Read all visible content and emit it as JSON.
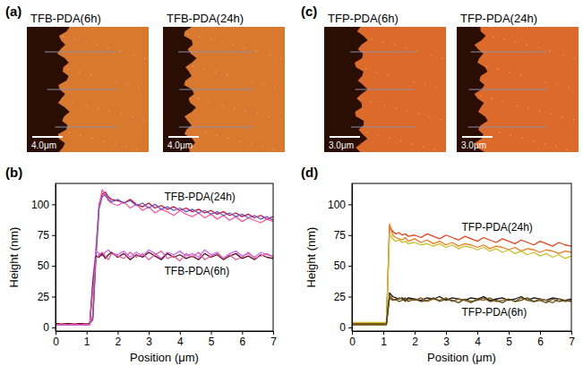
{
  "figure": {
    "panels": [
      {
        "label": "(a)",
        "images": [
          {
            "title": "TFB-PDA(6h)",
            "scale_bar": "4.0μm"
          },
          {
            "title": "TFB-PDA(24h)",
            "scale_bar": "4.0μm"
          }
        ]
      },
      {
        "label": "(c)",
        "images": [
          {
            "title": "TFP-PDA(6h)",
            "scale_bar": "3.0μm"
          },
          {
            "title": "TFP-PDA(24h)",
            "scale_bar": "3.0μm"
          }
        ]
      }
    ]
  },
  "chart_data": [
    {
      "type": "line",
      "panel_label": "(b)",
      "x_label": "Position (μm)",
      "y_label": "Height (nm)",
      "xlim": [
        0,
        7
      ],
      "xticks": [
        0,
        1,
        2,
        3,
        4,
        5,
        6,
        7
      ],
      "ylim": [
        -3,
        117
      ],
      "yticks": [
        0,
        25,
        50,
        75,
        100
      ],
      "x": [
        0,
        0.2,
        0.4,
        0.6,
        0.8,
        1.0,
        1.1,
        1.2,
        1.3,
        1.4,
        1.5,
        1.6,
        1.7,
        1.8,
        2.0,
        2.2,
        2.4,
        2.6,
        2.8,
        3.0,
        3.2,
        3.4,
        3.6,
        3.8,
        4.0,
        4.2,
        4.4,
        4.6,
        4.8,
        5.0,
        5.2,
        5.4,
        5.6,
        5.8,
        6.0,
        6.2,
        6.4,
        6.6,
        6.8,
        7.0
      ],
      "series": [
        {
          "color": "#c8102e",
          "values": [
            2,
            2,
            2,
            2,
            2,
            2,
            3,
            8,
            60,
            100,
            108,
            110,
            106,
            104,
            103,
            101,
            104,
            100,
            98,
            101,
            97,
            99,
            96,
            98,
            95,
            97,
            94,
            96,
            93,
            95,
            92,
            94,
            91,
            93,
            90,
            92,
            89,
            91,
            88,
            90
          ]
        },
        {
          "color": "#ff5aa0",
          "values": [
            3,
            3,
            3,
            3,
            3,
            3,
            3,
            10,
            65,
            98,
            112,
            107,
            103,
            101,
            99,
            102,
            97,
            100,
            95,
            98,
            93,
            96,
            94,
            91,
            95,
            92,
            90,
            93,
            89,
            92,
            88,
            91,
            87,
            90,
            86,
            89,
            87,
            85,
            88,
            86
          ]
        },
        {
          "color": "#6a5acd",
          "values": [
            3,
            2,
            3,
            2,
            3,
            2,
            3,
            6,
            55,
            96,
            106,
            108,
            104,
            102,
            104,
            101,
            103,
            99,
            101,
            97,
            100,
            96,
            98,
            95,
            97,
            94,
            96,
            93,
            95,
            92,
            94,
            91,
            93,
            90,
            92,
            89,
            91,
            88,
            90,
            87
          ]
        },
        {
          "color": "#cc66ff",
          "values": [
            2,
            2,
            2,
            2,
            2,
            2,
            2,
            40,
            62,
            60,
            58,
            61,
            63,
            60,
            59,
            62,
            57,
            61,
            58,
            63,
            60,
            56,
            61,
            59,
            62,
            58,
            60,
            57,
            63,
            59,
            61,
            56,
            60,
            62,
            58,
            60,
            57,
            61,
            59,
            58
          ]
        },
        {
          "color": "#5c0a1a",
          "values": [
            3,
            3,
            3,
            3,
            3,
            3,
            3,
            35,
            58,
            57,
            60,
            56,
            59,
            61,
            57,
            60,
            55,
            59,
            57,
            61,
            58,
            55,
            60,
            57,
            59,
            56,
            58,
            55,
            60,
            57,
            59,
            55,
            58,
            60,
            56,
            58,
            55,
            59,
            57,
            56
          ]
        },
        {
          "color": "#e0609a",
          "values": [
            2,
            3,
            2,
            3,
            2,
            3,
            2,
            30,
            56,
            59,
            61,
            58,
            55,
            60,
            58,
            56,
            61,
            57,
            60,
            55,
            59,
            62,
            56,
            58,
            54,
            60,
            57,
            61,
            55,
            58,
            60,
            56,
            59,
            55,
            57,
            61,
            56,
            58,
            60,
            57
          ]
        }
      ],
      "annotations": [
        {
          "text": "TFB-PDA(24h)",
          "series": [
            0,
            1,
            2
          ]
        },
        {
          "text": "TFB-PDA(6h)",
          "series": [
            3,
            4,
            5
          ]
        }
      ]
    },
    {
      "type": "line",
      "panel_label": "(d)",
      "x_label": "Position (μm)",
      "y_label": "Height (nm)",
      "xlim": [
        0,
        7
      ],
      "xticks": [
        0,
        1,
        2,
        3,
        4,
        5,
        6,
        7
      ],
      "ylim": [
        -3,
        117
      ],
      "yticks": [
        0,
        25,
        50,
        75,
        100
      ],
      "x": [
        0,
        0.2,
        0.4,
        0.6,
        0.8,
        1.0,
        1.1,
        1.2,
        1.3,
        1.4,
        1.5,
        1.6,
        1.7,
        1.8,
        2.0,
        2.2,
        2.4,
        2.6,
        2.8,
        3.0,
        3.2,
        3.4,
        3.6,
        3.8,
        4.0,
        4.2,
        4.4,
        4.6,
        4.8,
        5.0,
        5.2,
        5.4,
        5.6,
        5.8,
        6.0,
        6.2,
        6.4,
        6.6,
        6.8,
        7.0
      ],
      "series": [
        {
          "color": "#e8431e",
          "values": [
            3,
            3,
            3,
            3,
            3,
            3,
            4,
            82,
            78,
            76,
            77,
            75,
            76,
            74,
            75,
            73,
            76,
            74,
            72,
            75,
            73,
            71,
            74,
            72,
            70,
            73,
            71,
            69,
            72,
            70,
            68,
            71,
            69,
            67,
            70,
            68,
            66,
            69,
            67,
            66
          ]
        },
        {
          "color": "#f07a1c",
          "values": [
            3,
            3,
            3,
            3,
            3,
            3,
            4,
            84,
            75,
            73,
            72,
            71,
            73,
            70,
            72,
            69,
            71,
            68,
            70,
            67,
            69,
            66,
            68,
            67,
            65,
            67,
            64,
            66,
            65,
            63,
            65,
            62,
            64,
            63,
            61,
            63,
            62,
            60,
            62,
            61
          ]
        },
        {
          "color": "#c9c22a",
          "values": [
            4,
            4,
            4,
            4,
            4,
            4,
            4,
            76,
            72,
            70,
            71,
            69,
            70,
            68,
            69,
            67,
            68,
            66,
            68,
            65,
            67,
            64,
            66,
            65,
            63,
            65,
            62,
            64,
            61,
            63,
            60,
            62,
            59,
            61,
            58,
            60,
            57,
            59,
            56,
            58
          ]
        },
        {
          "color": "#111111",
          "values": [
            3,
            3,
            3,
            3,
            3,
            3,
            3,
            28,
            25,
            24,
            23,
            24,
            22,
            24,
            23,
            22,
            24,
            23,
            25,
            22,
            24,
            23,
            22,
            24,
            23,
            25,
            22,
            23,
            24,
            22,
            23,
            25,
            22,
            24,
            23,
            22,
            24,
            23,
            22,
            23
          ]
        },
        {
          "color": "#8a5a1e",
          "values": [
            3,
            3,
            3,
            3,
            3,
            3,
            3,
            26,
            23,
            22,
            24,
            23,
            21,
            23,
            22,
            24,
            21,
            23,
            22,
            24,
            21,
            23,
            22,
            20,
            23,
            22,
            24,
            21,
            22,
            23,
            21,
            24,
            22,
            21,
            23,
            22,
            20,
            23,
            21,
            22
          ]
        },
        {
          "color": "#5a4a10",
          "values": [
            2,
            2,
            2,
            2,
            2,
            2,
            2,
            24,
            22,
            23,
            21,
            22,
            24,
            21,
            23,
            21,
            22,
            24,
            21,
            23,
            22,
            20,
            23,
            21,
            22,
            24,
            21,
            22,
            20,
            23,
            21,
            22,
            24,
            21,
            22,
            20,
            23,
            21,
            22,
            21
          ]
        }
      ],
      "annotations": [
        {
          "text": "TFP-PDA(24h)",
          "series": [
            0,
            1,
            2
          ]
        },
        {
          "text": "TFP-PDA(6h)",
          "series": [
            3,
            4,
            5
          ]
        }
      ]
    }
  ]
}
